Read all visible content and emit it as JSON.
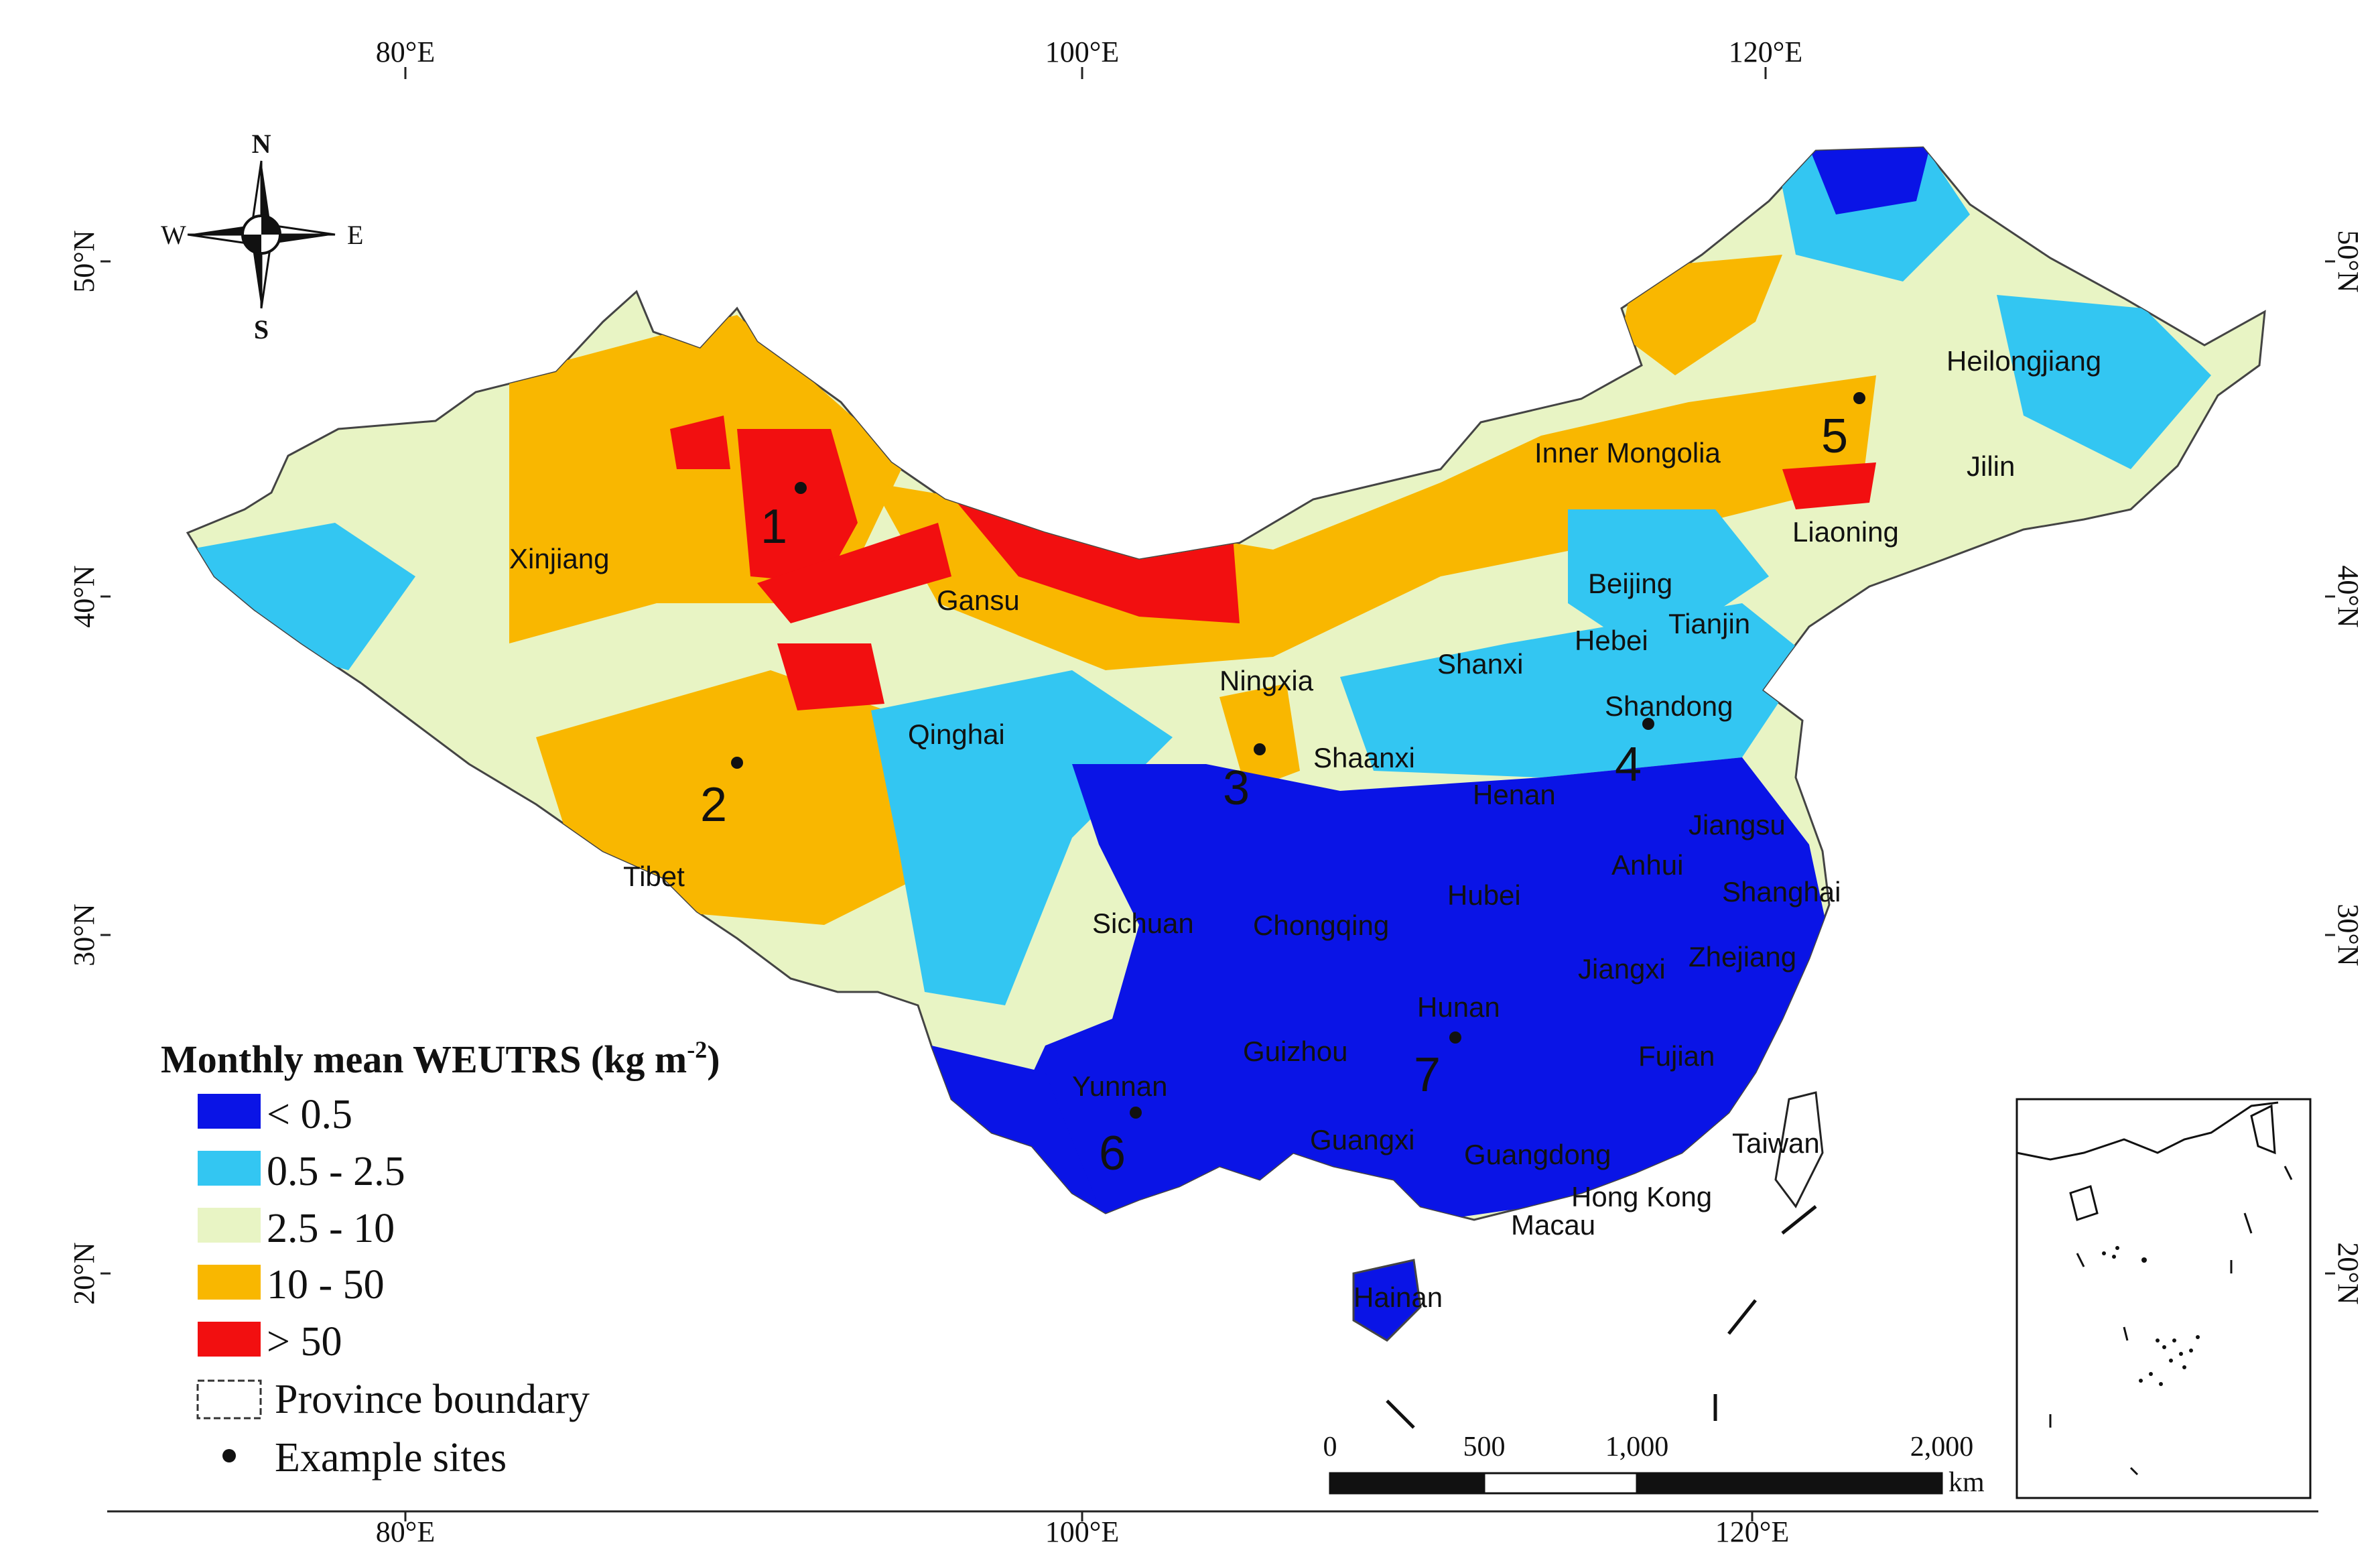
{
  "axes": {
    "top_lon": [
      "80°E",
      "100°E",
      "120°E"
    ],
    "bottom_lon": [
      "80°E",
      "100°E",
      "120°E"
    ],
    "left_lat": [
      "50°N",
      "40°N",
      "30°N",
      "20°N"
    ],
    "right_lat": [
      "50°N",
      "40°N",
      "30°N",
      "20°N"
    ]
  },
  "compass": {
    "n": "N",
    "s": "S",
    "e": "E",
    "w": "W"
  },
  "provinces": [
    "Xinjiang",
    "Gansu",
    "Qinghai",
    "Tibet",
    "Inner Mongolia",
    "Heilongjiang",
    "Jilin",
    "Liaoning",
    "Beijing",
    "Tianjin",
    "Hebei",
    "Shanxi",
    "Ningxia",
    "Shaanxi",
    "Shandong",
    "Henan",
    "Jiangsu",
    "Anhui",
    "Shanghai",
    "Hubei",
    "Sichuan",
    "Chongqing",
    "Zhejiang",
    "Jiangxi",
    "Hunan",
    "Guizhou",
    "Fujian",
    "Yunnan",
    "Guangxi",
    "Guangdong",
    "Taiwan",
    "Hong Kong",
    "Macau",
    "Hainan"
  ],
  "sites": [
    "1",
    "2",
    "3",
    "4",
    "5",
    "6",
    "7"
  ],
  "legend": {
    "title_main": "Monthly mean WEUTRS (kg m",
    "title_sup": "-2",
    "title_end": ")",
    "classes": [
      {
        "label": "< 0.5",
        "color": "#0a14e6"
      },
      {
        "label": "0.5 - 2.5",
        "color": "#33c6f2"
      },
      {
        "label": "2.5 - 10",
        "color": "#e8f4c4"
      },
      {
        "label": "10 - 50",
        "color": "#f9b700"
      },
      {
        "label": "> 50",
        "color": "#f20f10"
      }
    ],
    "boundary_label": "Province boundary",
    "sites_label": "Example sites"
  },
  "scale_bar": {
    "ticks": [
      "0",
      "500",
      "1,000",
      "2,000"
    ],
    "unit": "km"
  }
}
